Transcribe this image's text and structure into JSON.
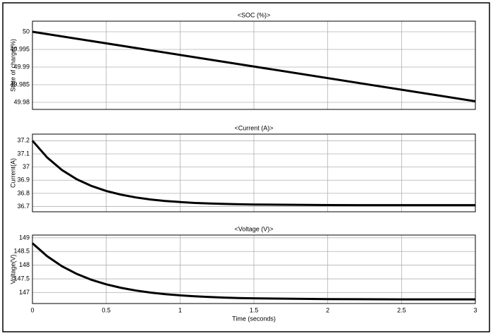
{
  "chart_data": [
    {
      "type": "line",
      "title": "<SOC (%)>",
      "ylabel": "State of charge(%)",
      "color": "#000000",
      "grid": true,
      "x": [
        0,
        3
      ],
      "values": [
        50,
        49.9803
      ],
      "xlim": [
        0,
        3
      ],
      "xticks": [
        0,
        0.5,
        1,
        1.5,
        2,
        2.5,
        3
      ],
      "ylim": [
        49.978,
        50.003
      ],
      "yticks": [
        49.98,
        49.985,
        49.99,
        49.995,
        50
      ]
    },
    {
      "type": "line",
      "title": "<Current (A)>",
      "ylabel": "Current(A)",
      "color": "#000000",
      "grid": true,
      "x": [
        0,
        0.1,
        0.2,
        0.3,
        0.4,
        0.5,
        0.6,
        0.7,
        0.8,
        0.9,
        1,
        1.1,
        1.2,
        1.3,
        1.4,
        1.5,
        2,
        2.5,
        3
      ],
      "values": [
        37.2,
        37.072,
        36.977,
        36.907,
        36.856,
        36.818,
        36.79,
        36.769,
        36.753,
        36.742,
        36.734,
        36.727,
        36.723,
        36.72,
        36.717,
        36.715,
        36.711,
        36.71,
        36.71
      ],
      "xlim": [
        0,
        3
      ],
      "xticks": [
        0,
        0.5,
        1,
        1.5,
        2,
        2.5,
        3
      ],
      "ylim": [
        36.66,
        37.25
      ],
      "yticks": [
        36.7,
        36.8,
        36.9,
        37,
        37.1,
        37.2
      ]
    },
    {
      "type": "line",
      "title": "<Voltage (V)>",
      "ylabel": "Voltage(V)",
      "xlabel": "Time (seconds)",
      "color": "#000000",
      "grid": true,
      "x": [
        0,
        0.1,
        0.2,
        0.3,
        0.4,
        0.5,
        0.6,
        0.7,
        0.8,
        0.9,
        1,
        1.1,
        1.2,
        1.3,
        1.4,
        1.5,
        2,
        2.5,
        3
      ],
      "values": [
        148.8,
        148.326,
        147.961,
        147.681,
        147.465,
        147.3,
        147.173,
        147.075,
        147,
        146.942,
        146.898,
        146.863,
        146.837,
        146.817,
        146.801,
        146.79,
        146.761,
        146.753,
        146.751
      ],
      "xlim": [
        0,
        3
      ],
      "xticks": [
        0,
        0.5,
        1,
        1.5,
        2,
        2.5,
        3
      ],
      "ylim": [
        146.6,
        149.1
      ],
      "yticks": [
        147,
        147.5,
        148,
        148.5,
        149
      ]
    }
  ]
}
